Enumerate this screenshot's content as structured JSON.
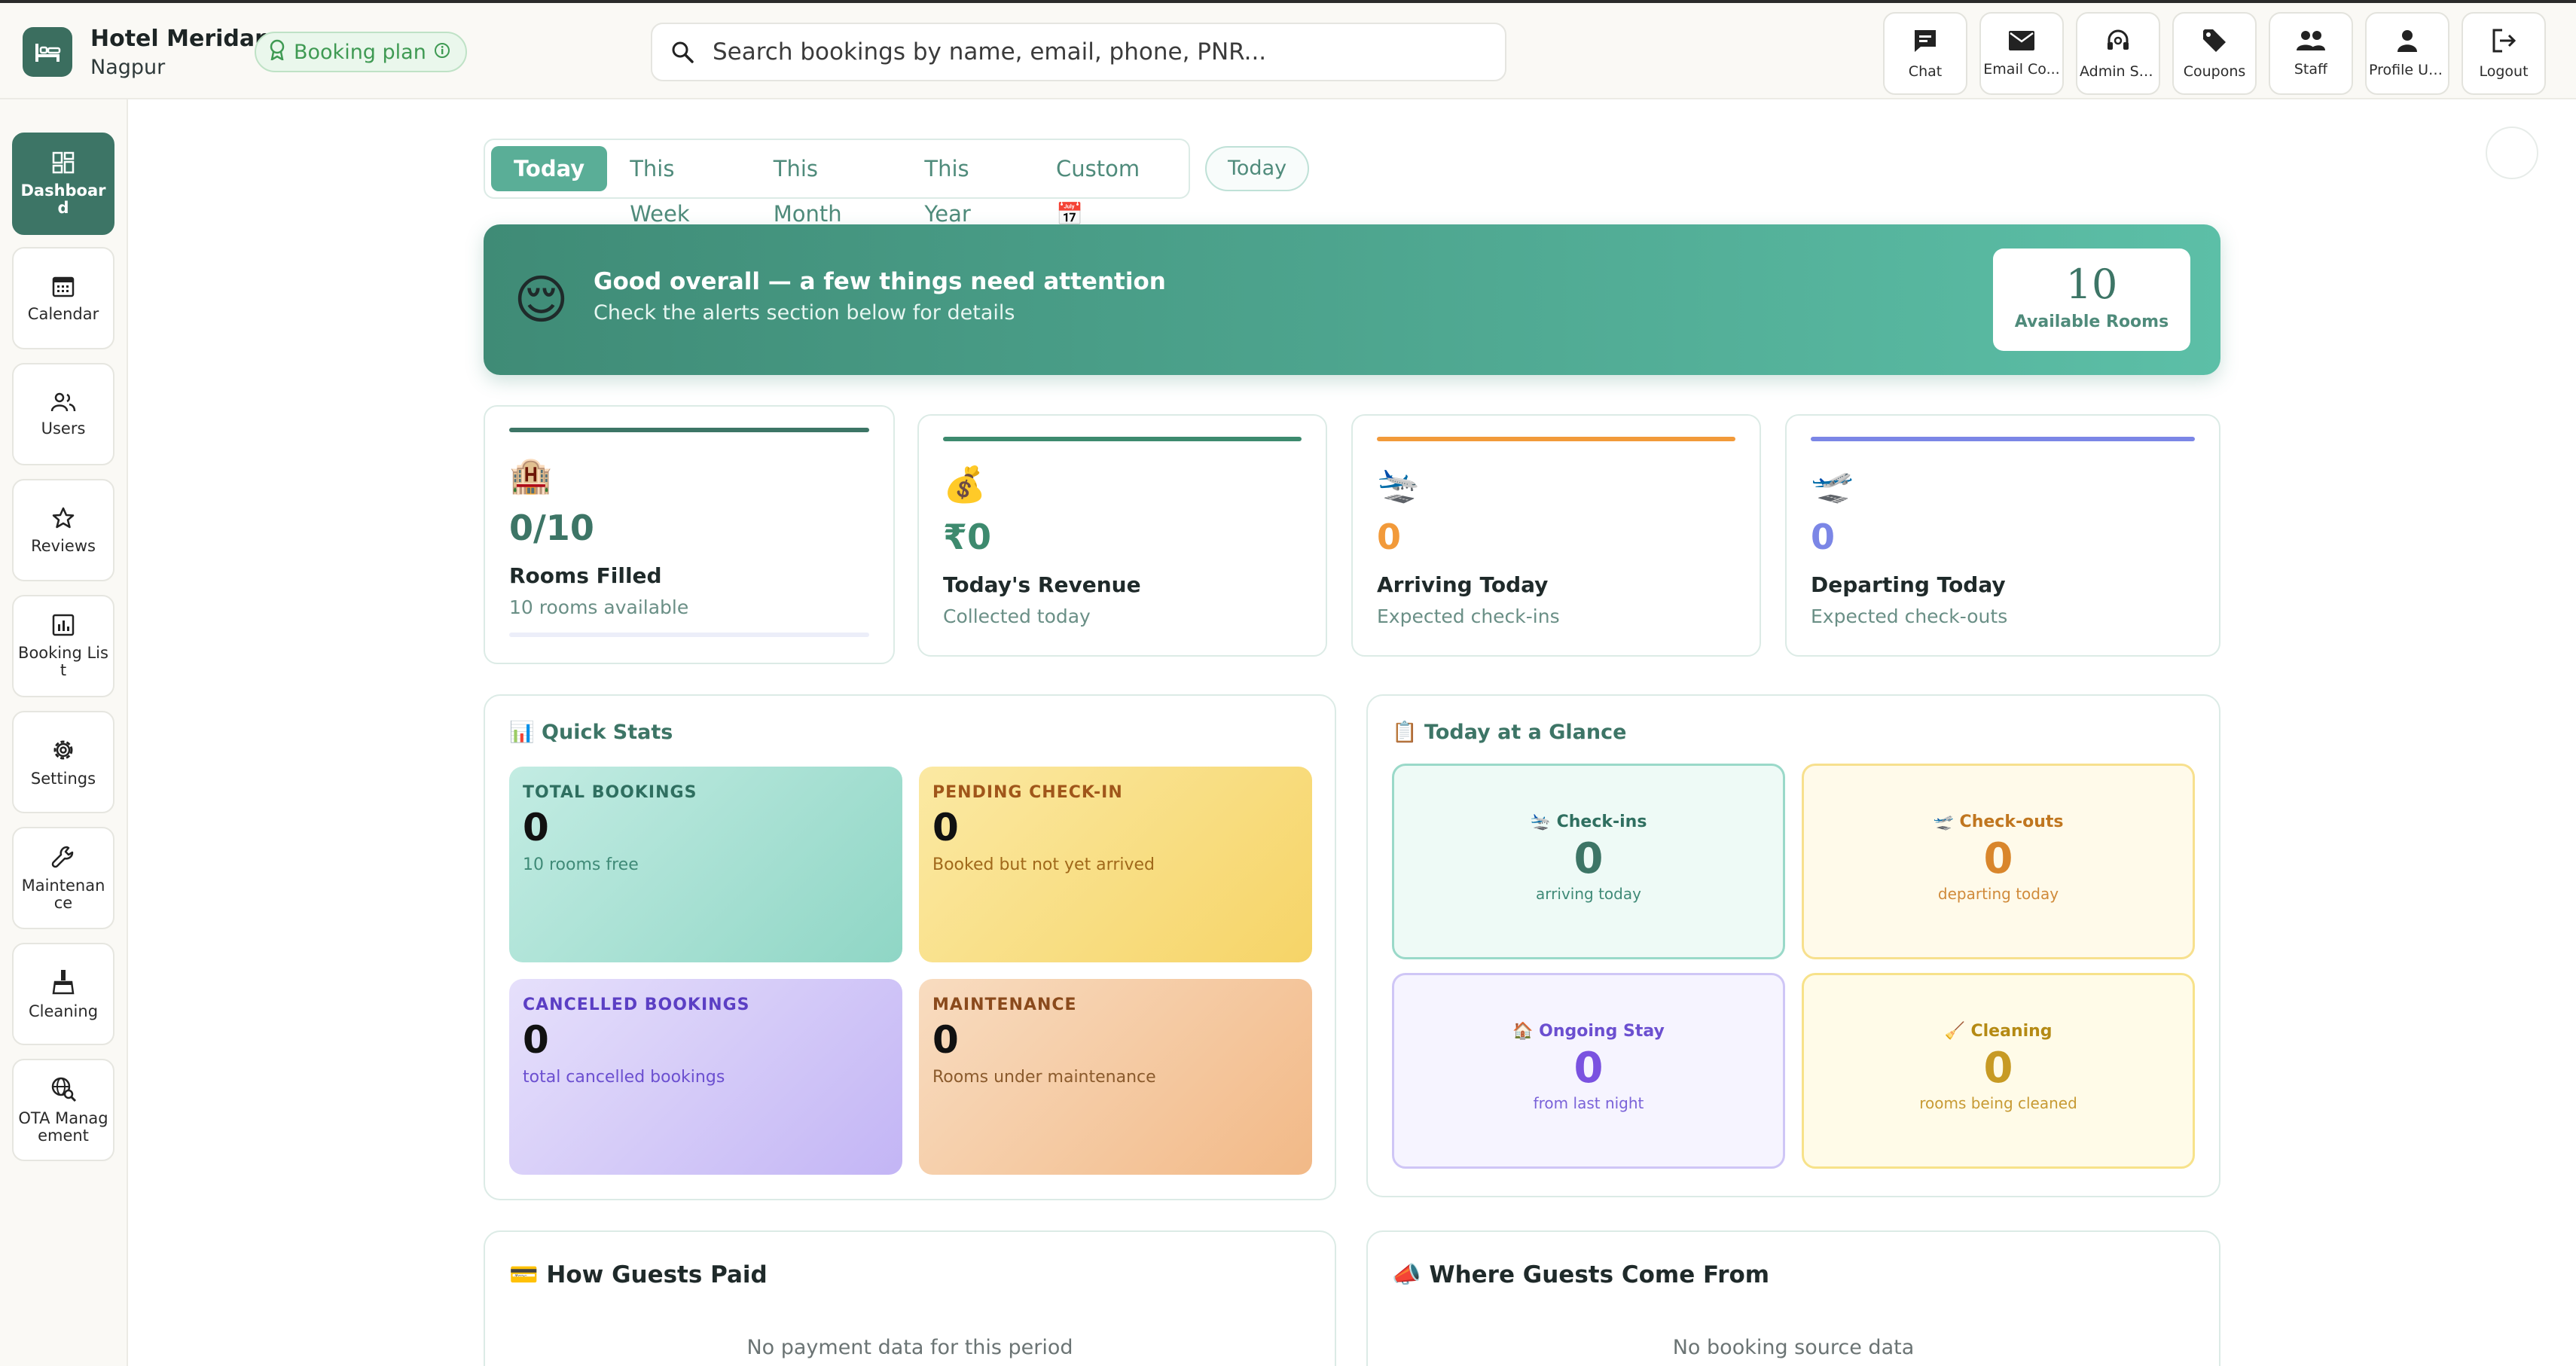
{
  "header": {
    "hotel_name": "Hotel Meridan",
    "city": "Nagpur",
    "plan_badge": "Booking plan",
    "search_placeholder": "Search bookings by name, email, phone, PNR...",
    "actions": [
      {
        "label": "Chat",
        "icon": "chat-icon"
      },
      {
        "label": "Email Co...",
        "icon": "mail-icon"
      },
      {
        "label": "Admin Su...",
        "icon": "headset-icon"
      },
      {
        "label": "Coupons",
        "icon": "tag-icon"
      },
      {
        "label": "Staff",
        "icon": "people-icon"
      },
      {
        "label": "Profile Up...",
        "icon": "person-icon"
      },
      {
        "label": "Logout",
        "icon": "logout-icon"
      }
    ]
  },
  "sidebar": {
    "items": [
      {
        "label": "Dashboard",
        "icon": "dashboard-icon",
        "active": true
      },
      {
        "label": "Calendar",
        "icon": "calendar-icon"
      },
      {
        "label": "Users",
        "icon": "users-icon"
      },
      {
        "label": "Reviews",
        "icon": "star-icon"
      },
      {
        "label": "Booking List",
        "icon": "chart-list-icon"
      },
      {
        "label": "Settings",
        "icon": "gear-icon"
      },
      {
        "label": "Maintenance",
        "icon": "wrench-icon"
      },
      {
        "label": "Cleaning",
        "icon": "broom-icon"
      },
      {
        "label": "OTA Management",
        "icon": "globe-search-icon"
      }
    ]
  },
  "range": {
    "tabs": [
      "Today",
      "This Week",
      "This Month",
      "This Year",
      "Custom 📅"
    ],
    "active": "Today",
    "chip": "Today"
  },
  "hero": {
    "emoji": "😌",
    "title": "Good overall — a few things need attention",
    "subtitle": "Check the alerts section below for details",
    "available_value": "10",
    "available_label": "Available Rooms"
  },
  "stats": [
    {
      "icon": "🏨",
      "value": "0/10",
      "label": "Rooms Filled",
      "sub": "10 rooms available",
      "color": "#3d7566"
    },
    {
      "icon": "💰",
      "value": "₹0",
      "label": "Today's Revenue",
      "sub": "Collected today",
      "color": "#3d8a6e"
    },
    {
      "icon": "🛬",
      "value": "0",
      "label": "Arriving Today",
      "sub": "Expected check-ins",
      "color": "#f29a3a"
    },
    {
      "icon": "🛫",
      "value": "0",
      "label": "Departing Today",
      "sub": "Expected check-outs",
      "color": "#7b86e6"
    }
  ],
  "quick_stats": {
    "title": "📊 Quick Stats",
    "tiles": [
      {
        "key": "TOTAL BOOKINGS",
        "value": "0",
        "desc": "10 rooms free"
      },
      {
        "key": "PENDING CHECK-IN",
        "value": "0",
        "desc": "Booked but not yet arrived"
      },
      {
        "key": "CANCELLED BOOKINGS",
        "value": "0",
        "desc": "total cancelled bookings"
      },
      {
        "key": "MAINTENANCE",
        "value": "0",
        "desc": "Rooms under maintenance"
      }
    ]
  },
  "glance": {
    "title": "📋 Today at a Glance",
    "tiles": [
      {
        "key": "🛬 Check-ins",
        "value": "0",
        "desc": "arriving today"
      },
      {
        "key": "🛫 Check-outs",
        "value": "0",
        "desc": "departing today"
      },
      {
        "key": "🏠 Ongoing Stay",
        "value": "0",
        "desc": "from last night"
      },
      {
        "key": "🧹 Cleaning",
        "value": "0",
        "desc": "rooms being cleaned"
      }
    ]
  },
  "payments": {
    "title": "💳 How Guests Paid",
    "empty": "No payment data for this period"
  },
  "sources": {
    "title": "📣 Where Guests Come From",
    "empty": "No booking source data"
  }
}
